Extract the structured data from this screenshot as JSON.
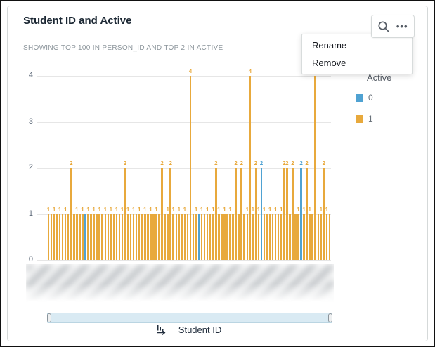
{
  "card": {
    "title": "Student ID and Active",
    "subtitle": "SHOWING TOP 100 IN PERSON_ID AND TOP 2 IN ACTIVE"
  },
  "toolbar": {
    "search_icon": "magnifier",
    "menu_icon": "ellipsis"
  },
  "context_menu": {
    "items": [
      {
        "label": "Rename"
      },
      {
        "label": "Remove"
      }
    ]
  },
  "legend": {
    "title": "Active",
    "items": [
      {
        "label": "0",
        "color": "#4FA2D2"
      },
      {
        "label": "1",
        "color": "#E8A93C"
      }
    ]
  },
  "x_axis": {
    "title": "Student ID",
    "labels_blurred": true
  },
  "scrollbar": {
    "range_start_pct": 0,
    "range_end_pct": 100
  },
  "chart_data": {
    "type": "bar",
    "title": "Student ID and Active",
    "xlabel": "Student ID",
    "ylabel": "",
    "ylim": [
      0,
      4
    ],
    "y_ticks": [
      0,
      1,
      2,
      3,
      4
    ],
    "grid": true,
    "legend_position": "right",
    "group_field": "Active",
    "groups": [
      {
        "name": "0",
        "color": "#4FA2D2"
      },
      {
        "name": "1",
        "color": "#E8A93C"
      }
    ],
    "bar_values": [
      1,
      1,
      1,
      1,
      1,
      1,
      1,
      1,
      2,
      1,
      1,
      1,
      1,
      1,
      1,
      1,
      1,
      1,
      1,
      1,
      1,
      1,
      1,
      1,
      1,
      1,
      1,
      2,
      1,
      1,
      1,
      1,
      1,
      1,
      1,
      1,
      1,
      1,
      1,
      1,
      2,
      1,
      1,
      2,
      1,
      1,
      1,
      1,
      1,
      1,
      4,
      1,
      1,
      1,
      1,
      1,
      1,
      1,
      1,
      2,
      1,
      1,
      1,
      1,
      1,
      1,
      2,
      1,
      2,
      1,
      1,
      4,
      1,
      2,
      1,
      2,
      1,
      1,
      1,
      1,
      1,
      1,
      1,
      2,
      2,
      1,
      2,
      1,
      1,
      2,
      1,
      2,
      1,
      1,
      4,
      1,
      1,
      2,
      1,
      1
    ],
    "bar_groups": [
      1,
      1,
      1,
      1,
      1,
      1,
      1,
      1,
      1,
      1,
      1,
      1,
      1,
      0,
      1,
      1,
      1,
      1,
      1,
      1,
      1,
      1,
      1,
      1,
      1,
      1,
      1,
      1,
      1,
      1,
      1,
      1,
      1,
      1,
      1,
      1,
      1,
      1,
      1,
      1,
      1,
      1,
      1,
      1,
      1,
      1,
      1,
      1,
      1,
      1,
      1,
      1,
      1,
      0,
      1,
      1,
      1,
      1,
      1,
      1,
      1,
      1,
      1,
      1,
      1,
      1,
      1,
      1,
      1,
      1,
      1,
      1,
      1,
      1,
      1,
      0,
      1,
      1,
      1,
      1,
      1,
      1,
      1,
      1,
      1,
      1,
      1,
      1,
      1,
      0,
      1,
      1,
      1,
      1,
      1,
      1,
      1,
      1,
      1,
      1
    ]
  }
}
